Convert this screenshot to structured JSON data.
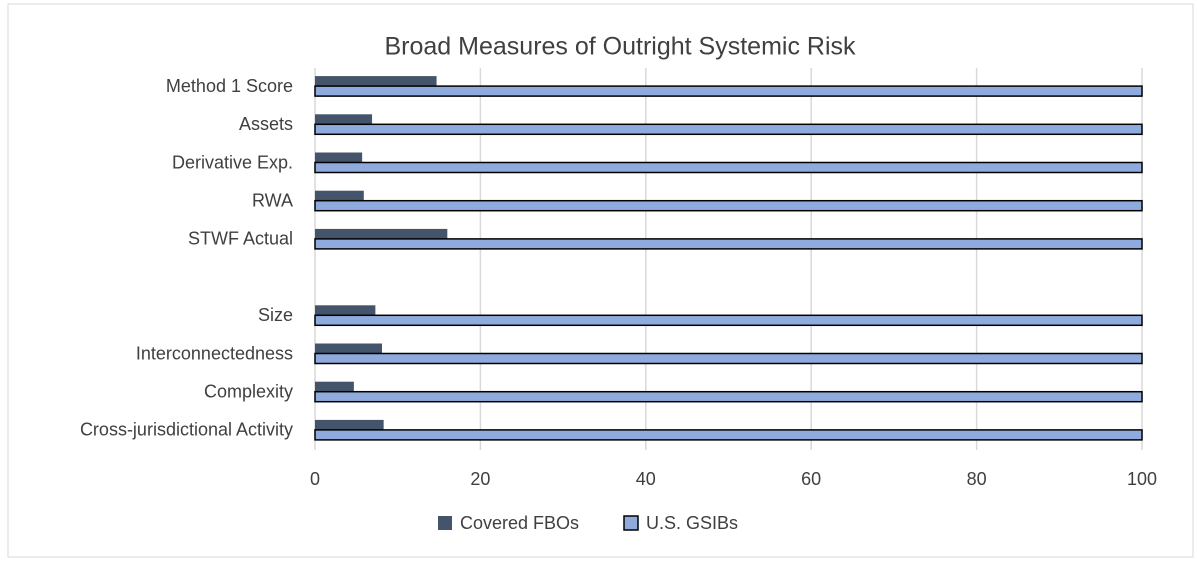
{
  "chart_data": {
    "type": "barh",
    "title": "Broad Measures of Outright Systemic Risk",
    "categories": [
      "Method 1 Score",
      "Assets",
      "Derivative Exp.",
      "RWA",
      "STWF Actual",
      null,
      "Size",
      "Interconnectedness",
      "Complexity",
      "Cross-jurisdictional Activity"
    ],
    "series": [
      {
        "name": "Covered FBOs",
        "color": "#44546a",
        "values": [
          14.7,
          6.9,
          5.7,
          5.9,
          16.0,
          null,
          7.3,
          8.1,
          4.7,
          8.3
        ]
      },
      {
        "name": "U.S. GSIBs",
        "color": "#8faadc",
        "values": [
          100,
          100,
          100,
          100,
          100,
          null,
          100,
          100,
          100,
          100
        ]
      }
    ],
    "xlim": [
      0,
      100
    ],
    "xticks": [
      0,
      20,
      40,
      60,
      80,
      100
    ],
    "grid": true,
    "legend": "bottom"
  }
}
